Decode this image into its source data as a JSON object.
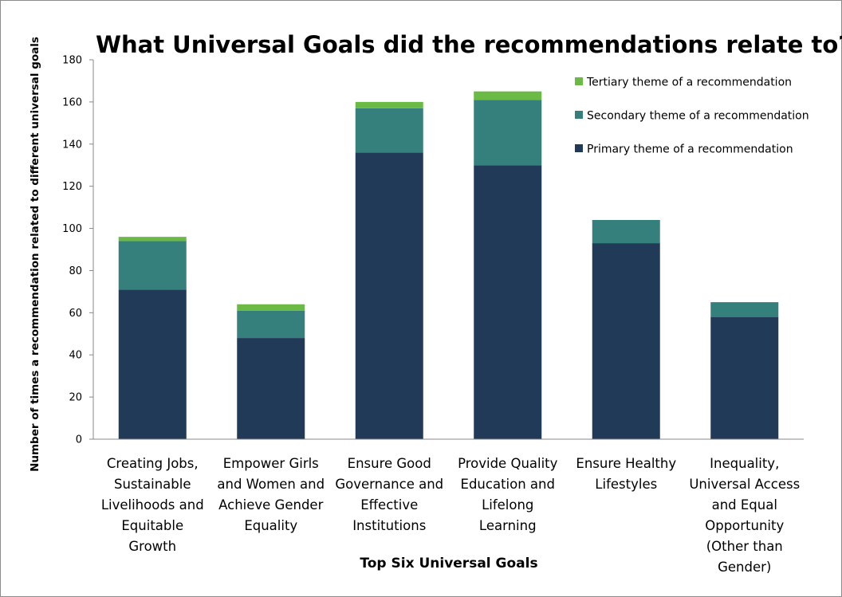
{
  "chart_data": {
    "type": "bar",
    "stacked": true,
    "title": "What Universal Goals did the recommendations relate to?",
    "xlabel": "Top Six Universal Goals",
    "ylabel": "Number of times a recommendation related to different universal goals",
    "ylim": [
      0,
      180
    ],
    "yticks": [
      0,
      20,
      40,
      60,
      80,
      100,
      120,
      140,
      160,
      180
    ],
    "grid": false,
    "legend_position": "top-right",
    "categories": [
      [
        "Creating Jobs,",
        "Sustainable",
        "Livelihoods and",
        "Equitable",
        "Growth"
      ],
      [
        "Empower Girls",
        "and Women and",
        "Achieve Gender",
        "Equality"
      ],
      [
        "Ensure Good",
        "Governance and",
        "Effective",
        "Institutions"
      ],
      [
        "Provide Quality",
        "Education and",
        "Lifelong",
        "Learning"
      ],
      [
        "Ensure Healthy",
        "Lifestyles"
      ],
      [
        "Inequality,",
        "Universal Access",
        "and Equal",
        "Opportunity",
        "(Other than",
        "Gender)"
      ]
    ],
    "series": [
      {
        "name": "Primary theme of a recommendation",
        "color": "#203a58",
        "values": [
          71,
          48,
          136,
          130,
          93,
          58
        ]
      },
      {
        "name": "Secondary theme of a recommendation",
        "color": "#35807d",
        "values": [
          23,
          13,
          21,
          31,
          11,
          7
        ]
      },
      {
        "name": "Tertiary theme of a recommendation",
        "color": "#6aba45",
        "values": [
          2,
          3,
          3,
          4,
          0,
          0
        ]
      }
    ],
    "legend_order": [
      2,
      1,
      0
    ]
  }
}
